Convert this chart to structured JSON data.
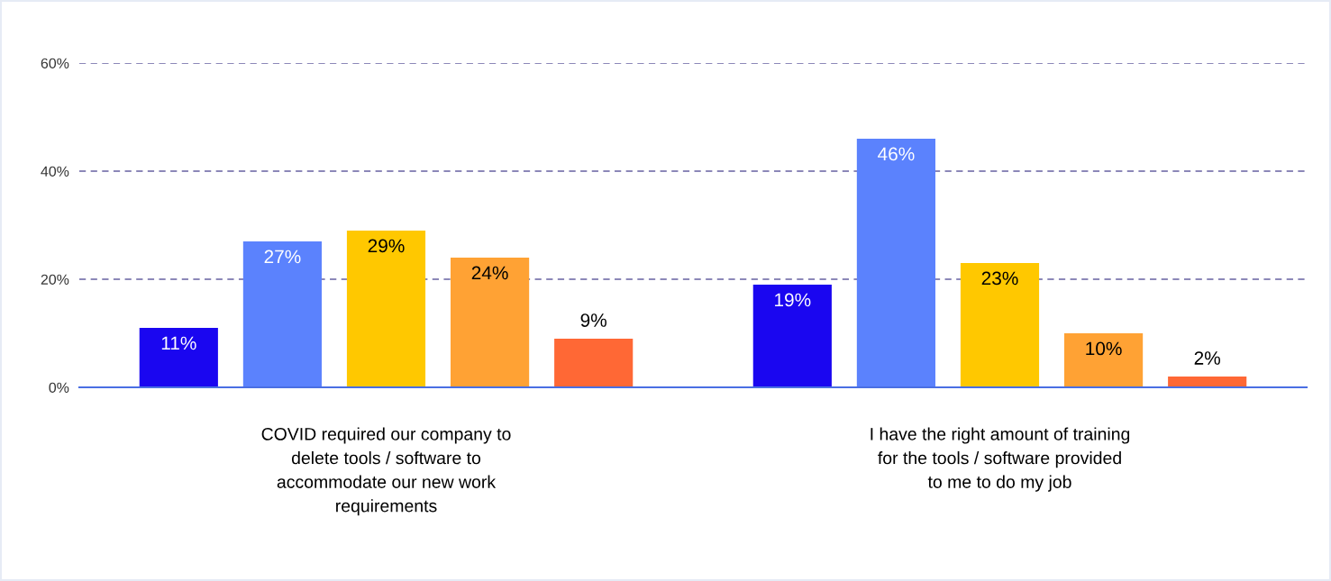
{
  "chart_data": {
    "type": "bar",
    "categories": [
      "COVID required our company to\ndelete tools / software to\naccommodate our new work\nrequirements",
      "I have the right amount of training\nfor the tools / software provided\nto me to do my job"
    ],
    "series": [
      {
        "color": "#1a06f0",
        "values": [
          11,
          19
        ],
        "value_labels": [
          "11%",
          "19%"
        ]
      },
      {
        "color": "#5b82fd",
        "values": [
          27,
          46
        ],
        "value_labels": [
          "27%",
          "46%"
        ]
      },
      {
        "color": "#ffc800",
        "values": [
          29,
          23
        ],
        "value_labels": [
          "29%",
          "23%"
        ]
      },
      {
        "color": "#ffa234",
        "values": [
          24,
          10
        ],
        "value_labels": [
          "24%",
          "10%"
        ]
      },
      {
        "color": "#ff6835",
        "values": [
          9,
          2
        ],
        "value_labels": [
          "9%",
          "2%"
        ]
      }
    ],
    "ylim": [
      0,
      60
    ],
    "yticks": [
      {
        "value": 0,
        "label": "0%"
      },
      {
        "value": 20,
        "label": "20%"
      },
      {
        "value": 40,
        "label": "40%"
      },
      {
        "value": 60,
        "label": "60%"
      }
    ],
    "grid": "y",
    "legend": false
  }
}
